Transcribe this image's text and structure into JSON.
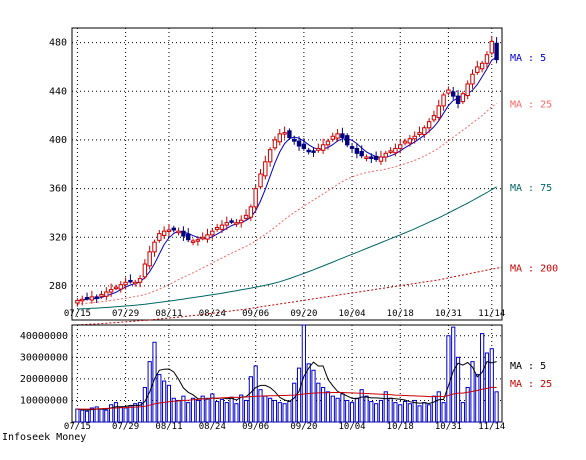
{
  "footer": "Infoseek Money",
  "chart_data": [
    {
      "type": "candlestick",
      "ylim": [
        252,
        492
      ],
      "yticks": [
        280,
        320,
        360,
        400,
        440,
        480
      ],
      "x_labels": [
        "07/15",
        "07/29",
        "08/11",
        "08/24",
        "09/06",
        "09/20",
        "10/04",
        "10/18",
        "10/31",
        "11/14"
      ],
      "x_label_index": [
        0,
        10,
        19,
        28,
        37,
        47,
        57,
        67,
        77,
        86
      ],
      "grid": true,
      "up_color": "#cc0000",
      "down_color": "#000080",
      "close": [
        268,
        269,
        270,
        271,
        270,
        273,
        275,
        277,
        279,
        281,
        283,
        284,
        283,
        286,
        298,
        308,
        316,
        323,
        325,
        326,
        326,
        325,
        321,
        318,
        317,
        318,
        320,
        322,
        325,
        328,
        330,
        332,
        333,
        332,
        334,
        338,
        345,
        360,
        372,
        382,
        392,
        400,
        405,
        406,
        402,
        399,
        395,
        393,
        391,
        390,
        393,
        396,
        399,
        403,
        405,
        402,
        396,
        393,
        389,
        387,
        386,
        385,
        384,
        386,
        389,
        391,
        393,
        396,
        399,
        401,
        403,
        406,
        410,
        415,
        420,
        428,
        437,
        441,
        436,
        430,
        438,
        446,
        454,
        460,
        463,
        470,
        481,
        466
      ],
      "series": [
        {
          "name": "MA : 5",
          "color": "#0000cc",
          "style": "solid",
          "values": [
            268,
            268.5,
            269,
            269.5,
            269.6,
            270.6,
            271.8,
            273.2,
            274.8,
            277,
            279,
            280.8,
            282,
            283.4,
            286.8,
            291.8,
            298.2,
            306.2,
            314,
            319.6,
            323.2,
            325,
            324.2,
            323.2,
            321.4,
            319.8,
            318.8,
            319,
            320.4,
            322.6,
            325,
            327.4,
            329.6,
            331,
            332.2,
            333.8,
            336.4,
            341.8,
            349.8,
            359.4,
            370.2,
            381.2,
            390.2,
            397,
            401,
            402.4,
            401.4,
            399,
            396,
            393.6,
            392.4,
            392.6,
            393.8,
            396.2,
            399.2,
            401,
            400.8,
            399.8,
            397,
            393.4,
            390.2,
            388,
            386.2,
            385.6,
            386,
            387,
            388.6,
            391,
            393.6,
            396,
            398.4,
            401,
            403.8,
            407,
            410.8,
            415.8,
            422,
            428.2,
            432.4,
            434.4,
            436.4,
            438.2,
            440.8,
            445.6,
            452,
            458.6,
            465.6,
            468
          ]
        },
        {
          "name": "MA : 25",
          "color": "#ff6666",
          "style": "dotted",
          "values": [
            265,
            265.4,
            265.8,
            266.2,
            266.6,
            267,
            267.5,
            268,
            268.6,
            269.2,
            269.9,
            270.6,
            271.3,
            272,
            273,
            274.2,
            275.7,
            277.4,
            279.2,
            281.1,
            283.1,
            285.2,
            287.1,
            289,
            290.8,
            292.8,
            294.8,
            296.8,
            298.9,
            301,
            303,
            305,
            306.9,
            308.8,
            310.6,
            312.6,
            314.6,
            317,
            319.6,
            322.4,
            325.2,
            328.2,
            331.4,
            334.6,
            337.6,
            340.4,
            343,
            345.6,
            348.2,
            350.6,
            353,
            355.6,
            358.2,
            360.8,
            363.4,
            365.8,
            367.8,
            369.6,
            371,
            372.2,
            373.2,
            374,
            374.6,
            375.2,
            376,
            377,
            378,
            379.2,
            380.4,
            381.8,
            383.2,
            384.8,
            386.6,
            388.8,
            391,
            393.4,
            396.2,
            399.2,
            402.2,
            405,
            408,
            411,
            414,
            417,
            420,
            423.6,
            427.4,
            430
          ]
        },
        {
          "name": "MA : 75",
          "color": "#006666",
          "style": "solid",
          "values": [
            261,
            261.2,
            261.4,
            261.6,
            261.8,
            262,
            262.3,
            262.6,
            262.9,
            263.2,
            263.5,
            263.8,
            264.2,
            264.6,
            265,
            265.5,
            266,
            266.5,
            267,
            267.5,
            268,
            268.6,
            269.2,
            269.8,
            270.4,
            271,
            271.6,
            272.2,
            272.8,
            273.4,
            274,
            274.7,
            275.4,
            276.1,
            276.8,
            277.5,
            278.2,
            279,
            279.8,
            280.6,
            281.4,
            282.4,
            283.5,
            284.7,
            286,
            287.4,
            288.8,
            290.3,
            291.8,
            293.3,
            294.8,
            296.4,
            298,
            299.6,
            301.2,
            302.8,
            304.4,
            306,
            307.6,
            309.2,
            310.8,
            312.4,
            314,
            315.6,
            317.2,
            318.8,
            320.4,
            322,
            323.6,
            325.3,
            327,
            328.8,
            330.6,
            332.4,
            334.2,
            336,
            338,
            340,
            342,
            344,
            346,
            348,
            350.2,
            352.4,
            354.6,
            356.8,
            359.2,
            361.5
          ]
        },
        {
          "name": "MA : 200",
          "color": "#cc0000",
          "style": "dotted",
          "values": [
            248,
            248.2,
            248.4,
            248.6,
            248.8,
            249,
            249.3,
            249.6,
            249.9,
            250.2,
            250.5,
            250.8,
            251.1,
            251.4,
            251.7,
            252,
            252.4,
            252.8,
            253.2,
            253.6,
            254,
            254.4,
            254.8,
            255.2,
            255.6,
            256,
            256.5,
            257,
            257.5,
            258,
            258.5,
            259,
            259.5,
            260,
            260.5,
            261,
            261.6,
            262.2,
            262.8,
            263.4,
            264,
            264.6,
            265.2,
            265.8,
            266.4,
            267,
            267.6,
            268.2,
            268.8,
            269.4,
            270,
            270.6,
            271.2,
            271.8,
            272.4,
            273,
            273.6,
            274.2,
            274.8,
            275.4,
            276,
            276.6,
            277.2,
            277.8,
            278.4,
            279,
            279.6,
            280.2,
            280.8,
            281.4,
            282,
            282.6,
            283.2,
            283.8,
            284.4,
            285,
            285.8,
            286.6,
            287.4,
            288.2,
            289,
            289.8,
            290.6,
            291.4,
            292.2,
            293,
            293.8,
            294.6,
            295.3
          ]
        }
      ],
      "legend": [
        "MA : 5",
        "MA : 25",
        "MA : 75",
        "MA : 200"
      ]
    },
    {
      "type": "bar",
      "ylim": [
        0,
        45000000
      ],
      "yticks": [
        10000000,
        20000000,
        30000000,
        40000000
      ],
      "ytick_labels": [
        "10000000",
        "20000000",
        "30000000",
        "40000000"
      ],
      "grid": true,
      "bar_color": "#0000cc",
      "values": [
        6000000,
        5500000,
        5000000,
        6500000,
        7000000,
        6000000,
        5500000,
        8000000,
        9000000,
        7000000,
        6500000,
        7500000,
        8500000,
        9000000,
        16000000,
        28000000,
        37000000,
        22000000,
        19000000,
        17000000,
        11000000,
        10000000,
        12000000,
        9000000,
        11000000,
        10000000,
        12000000,
        11000000,
        13000000,
        9500000,
        10500000,
        9000000,
        11500000,
        8500000,
        12500000,
        10000000,
        21000000,
        26000000,
        15000000,
        12000000,
        11000000,
        10000000,
        9000000,
        8500000,
        9500000,
        18000000,
        25000000,
        45000000,
        27000000,
        24000000,
        18000000,
        16000000,
        14000000,
        12000000,
        11000000,
        13000000,
        10000000,
        9000000,
        11000000,
        15000000,
        12000000,
        9500000,
        8500000,
        10000000,
        14000000,
        11000000,
        9000000,
        8000000,
        9500000,
        8500000,
        10000000,
        7500000,
        9000000,
        8000000,
        12000000,
        14000000,
        9000000,
        40000000,
        44000000,
        30000000,
        9000000,
        16000000,
        28000000,
        22000000,
        41000000,
        32000000,
        34000000,
        14000000
      ],
      "series": [
        {
          "name": "MA : 5",
          "color": "#000000",
          "values": [
            6000000,
            5750000,
            5500000,
            5750000,
            6000000,
            6000000,
            6000000,
            6600000,
            7100000,
            7100000,
            7200000,
            7700000,
            7700000,
            7700000,
            9500000,
            14000000,
            20000000,
            24000000,
            24500000,
            24600000,
            23200000,
            19800000,
            15800000,
            13800000,
            12600000,
            10800000,
            10800000,
            10600000,
            11200000,
            10900000,
            11200000,
            10800000,
            11000000,
            10200000,
            11500000,
            11800000,
            13700000,
            16000000,
            17000000,
            17000000,
            16000000,
            14000000,
            11400000,
            10200000,
            9600000,
            11100000,
            14200000,
            21200000,
            25000000,
            27800000,
            26000000,
            26000000,
            19800000,
            16800000,
            14200000,
            13200000,
            12000000,
            11000000,
            10800000,
            11600000,
            11600000,
            11200000,
            11200000,
            11000000,
            10800000,
            11000000,
            10800000,
            10600000,
            10200000,
            9400000,
            9000000,
            8700000,
            8900000,
            8600000,
            9300000,
            10300000,
            10500000,
            16700000,
            23500000,
            27300000,
            26400000,
            27600000,
            25400000,
            21000000,
            23000000,
            28000000,
            27400000,
            28000000
          ]
        },
        {
          "name": "MA : 25",
          "color": "#cc0000",
          "values": [
            6000000,
            6000000,
            6000000,
            6000000,
            6100000,
            6200000,
            6300000,
            6400000,
            6500000,
            6600000,
            6700000,
            6800000,
            6900000,
            7000000,
            7300000,
            7800000,
            8400000,
            8800000,
            9100000,
            9400000,
            9600000,
            9800000,
            10000000,
            10100000,
            10300000,
            10500000,
            10700000,
            10800000,
            11000000,
            11100000,
            11200000,
            11300000,
            11400000,
            11400000,
            11500000,
            11600000,
            11800000,
            11900000,
            12000000,
            12100000,
            12200000,
            12200000,
            12300000,
            12300000,
            12400000,
            12500000,
            12700000,
            13000000,
            13200000,
            13400000,
            13500000,
            13600000,
            13600000,
            13700000,
            13700000,
            13700000,
            13600000,
            13500000,
            13400000,
            13300000,
            13200000,
            13100000,
            13000000,
            12900000,
            12800000,
            12700000,
            12500000,
            12400000,
            12300000,
            12200000,
            12100000,
            12000000,
            11900000,
            11800000,
            11800000,
            11900000,
            11800000,
            12300000,
            13000000,
            13400000,
            13400000,
            13800000,
            14200000,
            14600000,
            15200000,
            15600000,
            16100000,
            16000000
          ]
        }
      ],
      "legend": [
        "MA : 5",
        "MA : 25"
      ]
    }
  ]
}
